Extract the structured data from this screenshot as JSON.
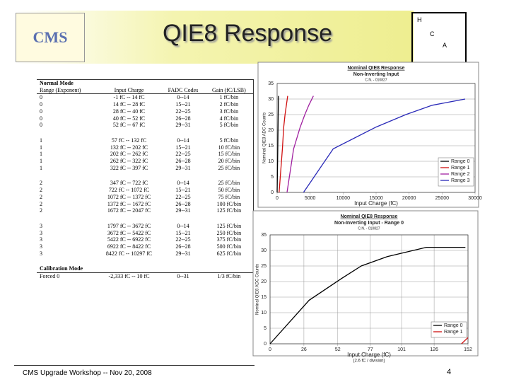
{
  "header": {
    "logo": "CMS",
    "title": "QIE8 Response",
    "box": [
      "H",
      "C",
      "A"
    ]
  },
  "table": {
    "section": "Normal Mode",
    "columns": [
      "Range (Exponent)",
      "Input Charge",
      "FADC Codes",
      "Gain (fC/LSB)"
    ],
    "rows": [
      [
        "0",
        "-1 fC -- 14 fC",
        "0--14",
        "1 fC/bin"
      ],
      [
        "0",
        "14 fC -- 28 fC",
        "15--21",
        "2 fC/bin"
      ],
      [
        "0",
        "28 fC -- 40 fC",
        "22--25",
        "3 fC/bin"
      ],
      [
        "0",
        "40 fC -- 52 fC",
        "26--28",
        "4 fC/bin"
      ],
      [
        "0",
        "52 fC -- 67 fC",
        "29--31",
        "5 fC/bin"
      ],
      [
        "1",
        "57 fC -- 132 fC",
        "0--14",
        "5 fC/bin"
      ],
      [
        "1",
        "132 fC -- 202 fC",
        "15--21",
        "10 fC/bin"
      ],
      [
        "1",
        "202 fC -- 262 fC",
        "22--25",
        "15 fC/bin"
      ],
      [
        "1",
        "262 fC -- 322 fC",
        "26--28",
        "20 fC/bin"
      ],
      [
        "1",
        "322 fC -- 397 fC",
        "29--31",
        "25 fC/bin"
      ],
      [
        "2",
        "347 fC -- 722 fC",
        "0--14",
        "25 fC/bin"
      ],
      [
        "2",
        "722 fC -- 1072 fC",
        "15--21",
        "50 fC/bin"
      ],
      [
        "2",
        "1072 fC -- 1372 fC",
        "22--25",
        "75 fC/bin"
      ],
      [
        "2",
        "1372 fC -- 1672 fC",
        "26--28",
        "100 fC/bin"
      ],
      [
        "2",
        "1672 fC -- 2047 fC",
        "29--31",
        "125 fC/bin"
      ],
      [
        "3",
        "1797 fC -- 3672 fC",
        "0--14",
        "125 fC/bin"
      ],
      [
        "3",
        "3672 fC -- 5422 fC",
        "15--21",
        "250 fC/bin"
      ],
      [
        "3",
        "5422 fC -- 6922 fC",
        "22--25",
        "375 fC/bin"
      ],
      [
        "3",
        "6922 fC -- 8422 fC",
        "26--28",
        "500 fC/bin"
      ],
      [
        "3",
        "8422 fC -- 10297 fC",
        "29--31",
        "625 fC/bin"
      ]
    ],
    "calibration": {
      "section": "Calibration Mode",
      "row": [
        "Forced 0",
        "-2,333 fC -- 10 fC",
        "0--31",
        "1/3 fC/bin"
      ]
    }
  },
  "charts": [
    {
      "title": "Nominal QIE8 Response",
      "subtitle": "Non-Inverting Input",
      "note": "C.N. - 010827",
      "y_label": "Nominal QIE8 ADC Counts",
      "x_label": "Input Charge (fC)",
      "xlim": [
        0,
        30000
      ],
      "ylim": [
        0,
        35
      ],
      "xticks": [
        0,
        5000,
        10000,
        15000,
        20000,
        25000,
        30000
      ],
      "yticks": [
        0,
        5,
        10,
        15,
        20,
        25,
        30,
        35
      ],
      "series": [
        {
          "name": "Range 0",
          "color": "#000000",
          "x": [
            0,
            100,
            200
          ],
          "values": [
            0,
            14,
            31
          ]
        },
        {
          "name": "Range 1",
          "color": "#d01010",
          "x": [
            300,
            800,
            1000,
            1200,
            1600
          ],
          "values": [
            0,
            14,
            21,
            25,
            31
          ]
        },
        {
          "name": "Range 2",
          "color": "#a020a0",
          "x": [
            1500,
            2500,
            3500,
            4200,
            4800,
            5500
          ],
          "values": [
            0,
            14,
            21,
            25,
            28,
            31
          ]
        },
        {
          "name": "Range 3",
          "color": "#2a2ab8",
          "x": [
            4000,
            8500,
            15000,
            19500,
            23500,
            28500
          ],
          "values": [
            0,
            14,
            21,
            25,
            28,
            30
          ]
        }
      ]
    },
    {
      "title": "Nominal QIE8 Response",
      "subtitle": "Non-Inverting Input  -  Range 0",
      "note": "C.N. - 010827",
      "y_label": "Nominal QIE8 ADC Counts",
      "x_label": "Input Charge (fC)",
      "x_sublabel": "(2.6 fC / division)",
      "xlim": [
        0,
        152
      ],
      "ylim": [
        0,
        35
      ],
      "xticks": [
        0,
        26,
        52,
        77,
        101,
        126,
        152
      ],
      "yticks": [
        0,
        5,
        10,
        15,
        20,
        25,
        30,
        35
      ],
      "series": [
        {
          "name": "Range 0",
          "color": "#000000",
          "x": [
            0,
            30,
            55,
            70,
            90,
            120,
            150
          ],
          "values": [
            0,
            14,
            21,
            25,
            28,
            31,
            31
          ]
        },
        {
          "name": "Range 1",
          "color": "#d01010",
          "x": [
            147,
            152
          ],
          "values": [
            0,
            2
          ]
        }
      ]
    }
  ],
  "footer": {
    "text": "CMS Upgrade Workshop -- Nov 20, 2008",
    "page": "4"
  }
}
